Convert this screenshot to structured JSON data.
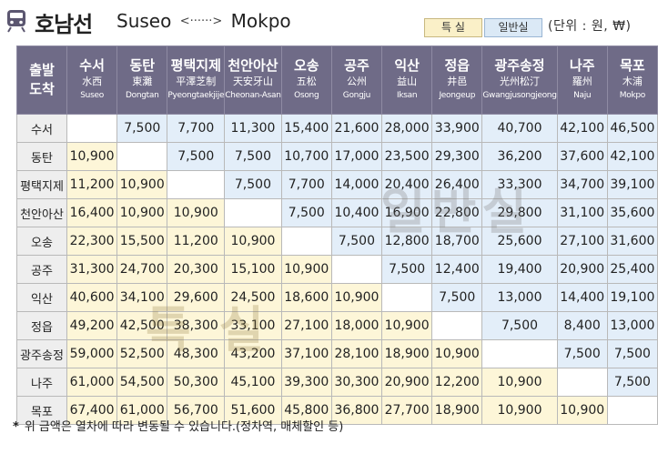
{
  "header": {
    "title": "호남선",
    "route_from": "Suseo",
    "route_arrow": "<······>",
    "route_to": "Mokpo",
    "badge_special": "특 실",
    "badge_general": "일반실",
    "unit": "(단위 : 원, ₩)"
  },
  "colors": {
    "header_bg": "#6f6b87",
    "special_cell": "#fdf6d8",
    "general_cell": "#e3eef9"
  },
  "table": {
    "corner_line1": "출발",
    "corner_line2": "도착",
    "stations": [
      {
        "ko": "수서",
        "hanja": "水西",
        "en": "Suseo"
      },
      {
        "ko": "동탄",
        "hanja": "東灘",
        "en": "Dongtan"
      },
      {
        "ko": "평택지제",
        "hanja": "平澤芝制",
        "en": "Pyeongtaekjije"
      },
      {
        "ko": "천안아산",
        "hanja": "天安牙山",
        "en": "Cheonan-Asan"
      },
      {
        "ko": "오송",
        "hanja": "五松",
        "en": "Osong"
      },
      {
        "ko": "공주",
        "hanja": "公州",
        "en": "Gongju"
      },
      {
        "ko": "익산",
        "hanja": "益山",
        "en": "Iksan"
      },
      {
        "ko": "정읍",
        "hanja": "井邑",
        "en": "Jeongeup"
      },
      {
        "ko": "광주송정",
        "hanja": "光州松汀",
        "en": "Gwangjusongjeong"
      },
      {
        "ko": "나주",
        "hanja": "羅州",
        "en": "Naju"
      },
      {
        "ko": "목포",
        "hanja": "木浦",
        "en": "Mokpo"
      }
    ],
    "rows": [
      [
        "",
        "7,500",
        "7,700",
        "11,300",
        "15,400",
        "21,600",
        "28,000",
        "33,900",
        "40,700",
        "42,100",
        "46,500"
      ],
      [
        "10,900",
        "",
        "7,500",
        "7,500",
        "10,700",
        "17,000",
        "23,500",
        "29,300",
        "36,200",
        "37,600",
        "42,100"
      ],
      [
        "11,200",
        "10,900",
        "",
        "7,500",
        "7,700",
        "14,000",
        "20,400",
        "26,400",
        "33,300",
        "34,700",
        "39,100"
      ],
      [
        "16,400",
        "10,900",
        "10,900",
        "",
        "7,500",
        "10,400",
        "16,900",
        "22,800",
        "29,800",
        "31,100",
        "35,600"
      ],
      [
        "22,300",
        "15,500",
        "11,200",
        "10,900",
        "",
        "7,500",
        "12,800",
        "18,700",
        "25,600",
        "27,100",
        "31,600"
      ],
      [
        "31,300",
        "24,700",
        "20,300",
        "15,100",
        "10,900",
        "",
        "7,500",
        "12,400",
        "19,400",
        "20,900",
        "25,400"
      ],
      [
        "40,600",
        "34,100",
        "29,600",
        "24,500",
        "18,600",
        "10,900",
        "",
        "7,500",
        "13,000",
        "14,400",
        "19,100"
      ],
      [
        "49,200",
        "42,500",
        "38,300",
        "33,100",
        "27,100",
        "18,000",
        "10,900",
        "",
        "7,500",
        "8,400",
        "13,000"
      ],
      [
        "59,000",
        "52,500",
        "48,300",
        "43,200",
        "37,100",
        "28,100",
        "18,900",
        "10,900",
        "",
        "7,500",
        "7,500"
      ],
      [
        "61,000",
        "54,500",
        "50,300",
        "45,100",
        "39,300",
        "30,300",
        "20,900",
        "12,200",
        "10,900",
        "",
        "7,500"
      ],
      [
        "67,400",
        "61,000",
        "56,700",
        "51,600",
        "45,800",
        "36,800",
        "27,700",
        "18,900",
        "10,900",
        "10,900",
        ""
      ]
    ]
  },
  "watermarks": {
    "general": "일반실",
    "special": "특 실"
  },
  "footnote": {
    "star": "*",
    "text": "위 금액은 열차에 따라 변동될 수 있습니다.(정차역, 매체할인 등)"
  }
}
